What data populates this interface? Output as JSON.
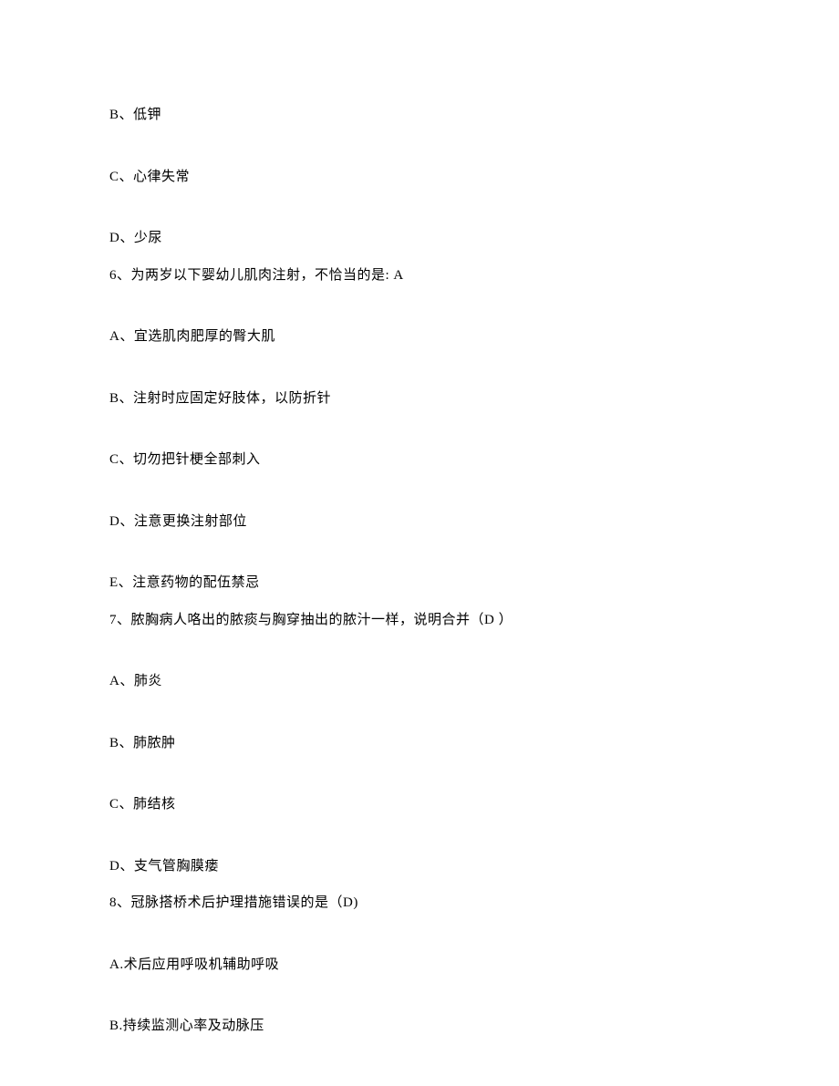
{
  "lines": [
    {
      "text": "B、低钾",
      "type": "option"
    },
    {
      "text": "C、心律失常",
      "type": "option"
    },
    {
      "text": "D、少尿",
      "type": "option-before-question"
    },
    {
      "text": "6、为两岁以下婴幼儿肌肉注射，不恰当的是: A",
      "type": "question"
    },
    {
      "text": "A、宜选肌肉肥厚的臀大肌",
      "type": "option"
    },
    {
      "text": "B、注射时应固定好肢体，以防折针",
      "type": "option"
    },
    {
      "text": "C、切勿把针梗全部刺入",
      "type": "option"
    },
    {
      "text": "D、注意更换注射部位",
      "type": "option"
    },
    {
      "text": "E、注意药物的配伍禁忌",
      "type": "option-before-question"
    },
    {
      "text": "7、脓胸病人咯出的脓痰与胸穿抽出的脓汁一样，说明合并（D ）",
      "type": "question"
    },
    {
      "text": "A、肺炎",
      "type": "option"
    },
    {
      "text": "B、肺脓肿",
      "type": "option"
    },
    {
      "text": "C、肺结核",
      "type": "option"
    },
    {
      "text": "D、支气管胸膜瘘",
      "type": "option-before-question"
    },
    {
      "text": "8、冠脉搭桥术后护理措施错误的是（D)",
      "type": "question"
    },
    {
      "text": "A.术后应用呼吸机辅助呼吸",
      "type": "option"
    },
    {
      "text": "B.持续监测心率及动脉压",
      "type": "option"
    }
  ],
  "styles": {
    "background_color": "#ffffff",
    "text_color": "#000000",
    "font_size": 15,
    "font_family": "SimSun"
  }
}
